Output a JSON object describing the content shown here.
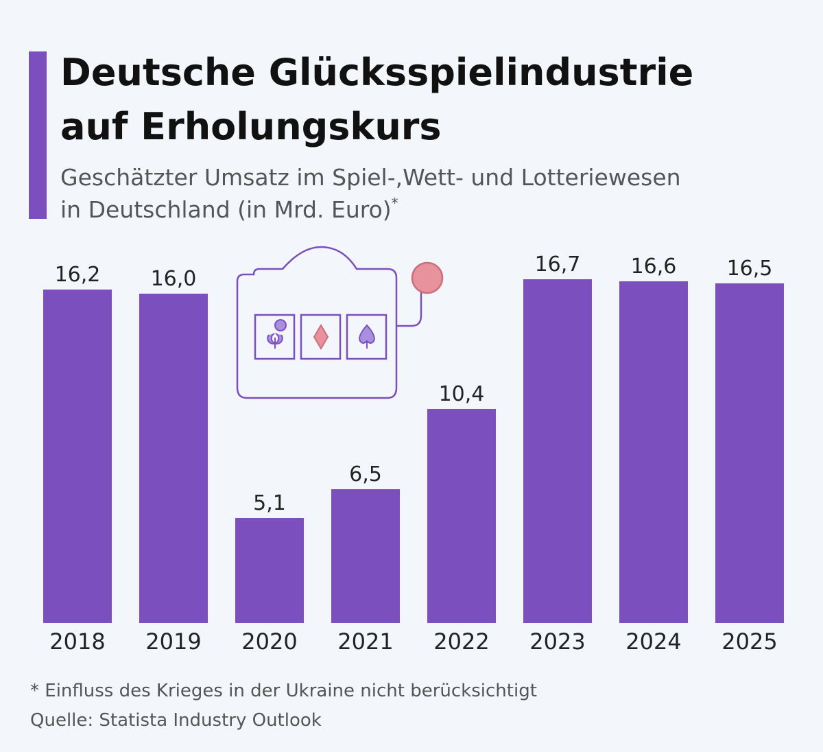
{
  "chart_data": {
    "type": "bar",
    "title": [
      "Deutsche Glücksspielindustrie",
      "auf Erholungskurs"
    ],
    "subtitle": [
      "Geschätzter Umsatz im Spiel-,Wett- und Lotteriewesen",
      "in Deutschland (in Mrd. Euro)"
    ],
    "subtitle_marker": "*",
    "categories": [
      "2018",
      "2019",
      "2020",
      "2021",
      "2022",
      "2023",
      "2024",
      "2025"
    ],
    "values": [
      16.2,
      16.0,
      5.1,
      6.5,
      10.4,
      16.7,
      16.6,
      16.5
    ],
    "value_labels": [
      "16,2",
      "16,0",
      "5,1",
      "6,5",
      "10,4",
      "16,7",
      "16,6",
      "16,5"
    ],
    "color": "#7c4fbe",
    "footnote": "* Einfluss des Krieges in der Ukraine nicht berücksichtigt",
    "source": "Quelle: Statista Industry Outlook"
  }
}
